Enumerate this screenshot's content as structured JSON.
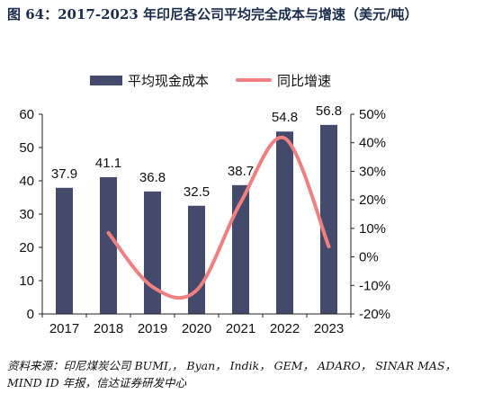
{
  "title": "图 64：2017-2023 年印尼各公司平均完全成本与增速（美元/吨）",
  "legend": {
    "bar_label": "平均现金成本",
    "line_label": "同比增速"
  },
  "source": "资料来源：印尼煤炭公司 BUMI,， Byan， Indik， GEM， ADARO， SINAR MAS， MIND ID 年报，信达证券研发中心",
  "colors": {
    "bar": "#434a6c",
    "line": "#f08080"
  },
  "chart_data": {
    "type": "bar",
    "categories": [
      "2017",
      "2018",
      "2019",
      "2020",
      "2021",
      "2022",
      "2023"
    ],
    "series": [
      {
        "name": "平均现金成本",
        "type": "bar",
        "axis": "left",
        "values": [
          37.9,
          41.1,
          36.8,
          32.5,
          38.7,
          54.8,
          56.8
        ]
      },
      {
        "name": "同比增速",
        "type": "line",
        "axis": "right",
        "values": [
          null,
          8.4,
          -10.5,
          -11.7,
          19.1,
          41.6,
          3.6
        ]
      }
    ],
    "data_labels": [
      "37.9",
      "41.1",
      "36.8",
      "32.5",
      "38.7",
      "54.8",
      "56.8"
    ],
    "left_axis": {
      "ylim": [
        0,
        60
      ],
      "ticks": [
        "0",
        "10",
        "20",
        "30",
        "40",
        "50",
        "60"
      ]
    },
    "right_axis": {
      "ylim": [
        -20,
        50
      ],
      "ticks": [
        "-20%",
        "-10%",
        "0%",
        "10%",
        "20%",
        "30%",
        "40%",
        "50%"
      ]
    },
    "grid": false,
    "legend_position": "top"
  }
}
